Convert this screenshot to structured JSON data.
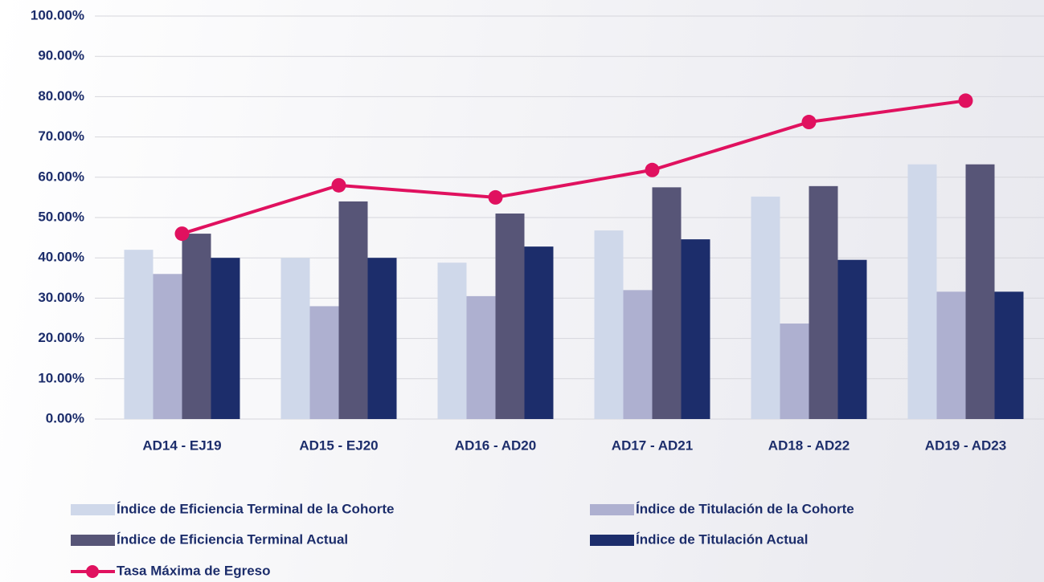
{
  "chart_data": {
    "type": "bar",
    "categories": [
      "AD14 - EJ19",
      "AD15 - EJ20",
      "AD16 - AD20",
      "AD17 - AD21",
      "AD18 - AD22",
      "AD19 - AD23"
    ],
    "series": [
      {
        "name": "Índice de Eficiencia Terminal de la Cohorte",
        "color": "#cfd8ea",
        "values": [
          42,
          40,
          38.8,
          46.8,
          55.2,
          63.2
        ]
      },
      {
        "name": "Índice de Titulación de la Cohorte",
        "color": "#aeb0d0",
        "values": [
          36,
          28,
          30.5,
          32,
          23.7,
          31.6
        ]
      },
      {
        "name": "Índice de Eficiencia Terminal Actual",
        "color": "#575577",
        "values": [
          46,
          54,
          51,
          57.5,
          57.8,
          63.2
        ]
      },
      {
        "name": "Índice de Titulación Actual",
        "color": "#1c2d6b",
        "values": [
          40,
          40,
          42.8,
          44.6,
          39.5,
          31.6
        ]
      },
      {
        "name": "Tasa Máxima de Egreso",
        "color": "#e0115f",
        "type": "line",
        "values": [
          46,
          58,
          55,
          61.8,
          73.7,
          79
        ]
      }
    ],
    "ylim": [
      0,
      100
    ],
    "yticks": [
      {
        "value": 0,
        "label": "0.00%"
      },
      {
        "value": 10,
        "label": "10.00%"
      },
      {
        "value": 20,
        "label": "20.00%"
      },
      {
        "value": 30,
        "label": "30.00%"
      },
      {
        "value": 40,
        "label": "40.00%"
      },
      {
        "value": 50,
        "label": "50.00%"
      },
      {
        "value": 60,
        "label": "60.00%"
      },
      {
        "value": 70,
        "label": "70.00%"
      },
      {
        "value": 80,
        "label": "80.00%"
      },
      {
        "value": 90,
        "label": "90.00%"
      },
      {
        "value": 100,
        "label": "100.00%"
      }
    ],
    "grid": true
  }
}
